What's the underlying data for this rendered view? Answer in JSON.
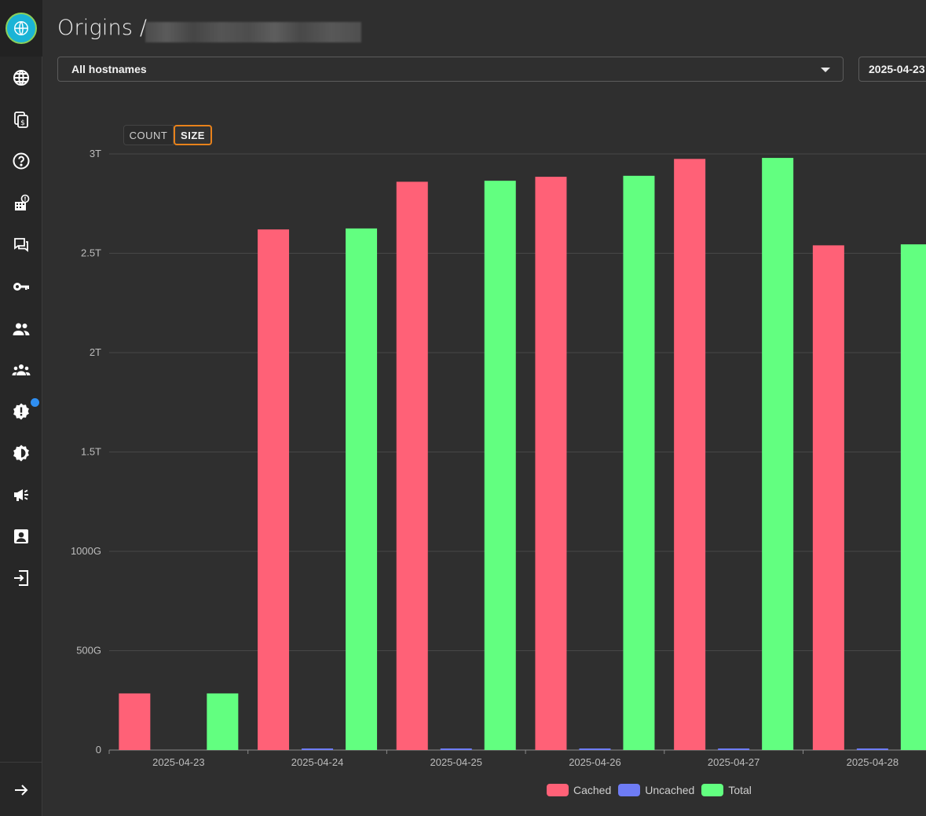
{
  "header": {
    "title": "Origins /",
    "hostname_select": "All hostnames",
    "date_field": "2025-04-23"
  },
  "toggle": {
    "count_label": "COUNT",
    "size_label": "SIZE",
    "selected": "SIZE"
  },
  "sidebar": {
    "icons": [
      "globe-icon",
      "billing-icon",
      "help-icon",
      "building-alert-icon",
      "chat-icon",
      "key-icon",
      "users-icon",
      "groups-icon",
      "alert-badge-icon",
      "brightness-icon",
      "megaphone-icon",
      "contact-icon",
      "login-icon"
    ],
    "bottom_icon": "arrow-right-icon"
  },
  "chart_data": {
    "type": "bar",
    "categories": [
      "2025-04-23",
      "2025-04-24",
      "2025-04-25",
      "2025-04-26",
      "2025-04-27",
      "2025-04-28"
    ],
    "series": [
      {
        "name": "Cached",
        "color": "#ff6177",
        "values": [
          0.285,
          2.62,
          2.86,
          2.885,
          2.975,
          2.54
        ]
      },
      {
        "name": "Uncached",
        "color": "#6e7cf5",
        "values": [
          0.0,
          0.002,
          0.004,
          0.004,
          0.004,
          0.006
        ]
      },
      {
        "name": "Total",
        "color": "#62ff80",
        "values": [
          0.285,
          2.625,
          2.865,
          2.89,
          2.98,
          2.545
        ]
      }
    ],
    "y_ticks": [
      "0",
      "500G",
      "1000G",
      "1.5T",
      "2T",
      "2.5T",
      "3T"
    ],
    "y_unit": "T",
    "ylim": [
      0,
      3
    ],
    "legend_position": "bottom",
    "grid": true
  }
}
